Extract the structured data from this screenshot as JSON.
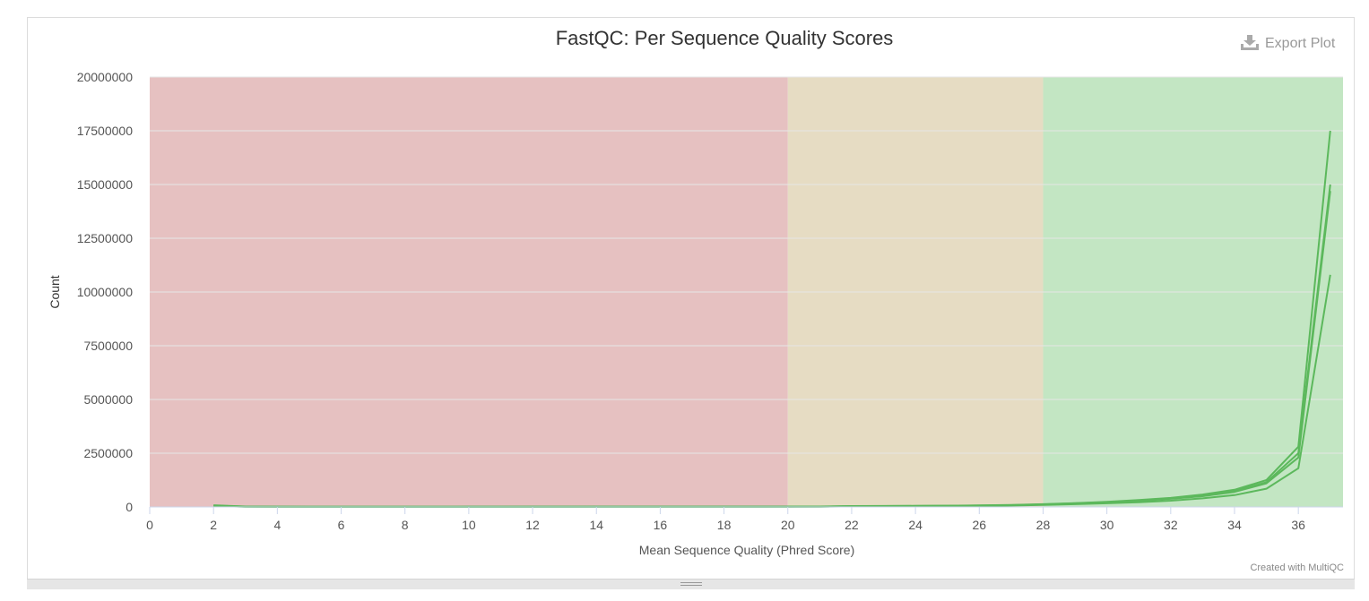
{
  "toolbar": {
    "export_label": "Export Plot"
  },
  "footer": {
    "credit": "Created with MultiQC"
  },
  "colors": {
    "fail_zone": "#e6c1c1",
    "warn_zone": "#e6dcc3",
    "pass_zone": "#c3e6c3",
    "series_line": "#5cb85c"
  },
  "chart_data": {
    "type": "line",
    "title": "FastQC: Per Sequence Quality Scores",
    "xlabel": "Mean Sequence Quality (Phred Score)",
    "ylabel": "Count",
    "xlim": [
      0,
      37.4
    ],
    "ylim": [
      0,
      20000000
    ],
    "xticks": [
      0,
      2,
      4,
      6,
      8,
      10,
      12,
      14,
      16,
      18,
      20,
      22,
      24,
      26,
      28,
      30,
      32,
      34,
      36
    ],
    "yticks": [
      0,
      2500000,
      5000000,
      7500000,
      10000000,
      12500000,
      15000000,
      17500000,
      20000000
    ],
    "grid": true,
    "bands": [
      {
        "from": 0,
        "to": 20,
        "zone": "fail"
      },
      {
        "from": 20,
        "to": 28,
        "zone": "warn"
      },
      {
        "from": 28,
        "to": 37.4,
        "zone": "pass"
      }
    ],
    "x": [
      2,
      3,
      4,
      5,
      6,
      7,
      8,
      9,
      10,
      11,
      12,
      13,
      14,
      15,
      16,
      17,
      18,
      19,
      20,
      21,
      22,
      23,
      24,
      25,
      26,
      27,
      28,
      29,
      30,
      31,
      32,
      33,
      34,
      35,
      36,
      37
    ],
    "series": [
      {
        "values": [
          80000,
          20000,
          10000,
          8000,
          8000,
          8000,
          8000,
          8000,
          9000,
          9000,
          10000,
          10000,
          11000,
          12000,
          13000,
          14000,
          15000,
          16000,
          18000,
          20000,
          40000,
          45000,
          50000,
          60000,
          70000,
          90000,
          130000,
          180000,
          240000,
          320000,
          420000,
          580000,
          800000,
          1250000,
          2800000,
          17500000
        ]
      },
      {
        "values": [
          60000,
          15000,
          8000,
          6000,
          6000,
          6000,
          6000,
          6000,
          7000,
          7000,
          8000,
          8000,
          9000,
          10000,
          11000,
          12000,
          13000,
          14000,
          16000,
          18000,
          35000,
          40000,
          45000,
          55000,
          65000,
          85000,
          120000,
          170000,
          220000,
          300000,
          400000,
          540000,
          740000,
          1150000,
          2500000,
          15000000
        ]
      },
      {
        "values": [
          50000,
          12000,
          7000,
          5000,
          5000,
          5000,
          5000,
          5000,
          6000,
          6000,
          7000,
          7000,
          8000,
          9000,
          10000,
          11000,
          12000,
          13000,
          14000,
          16000,
          30000,
          35000,
          40000,
          50000,
          60000,
          80000,
          110000,
          160000,
          210000,
          280000,
          380000,
          500000,
          700000,
          1100000,
          2300000,
          14700000
        ]
      },
      {
        "values": [
          40000,
          10000,
          6000,
          4000,
          4000,
          4000,
          4000,
          4000,
          5000,
          5000,
          6000,
          6000,
          7000,
          8000,
          9000,
          10000,
          11000,
          12000,
          13000,
          14000,
          25000,
          30000,
          35000,
          40000,
          50000,
          65000,
          90000,
          130000,
          170000,
          220000,
          290000,
          400000,
          550000,
          850000,
          1800000,
          10800000
        ]
      }
    ]
  }
}
